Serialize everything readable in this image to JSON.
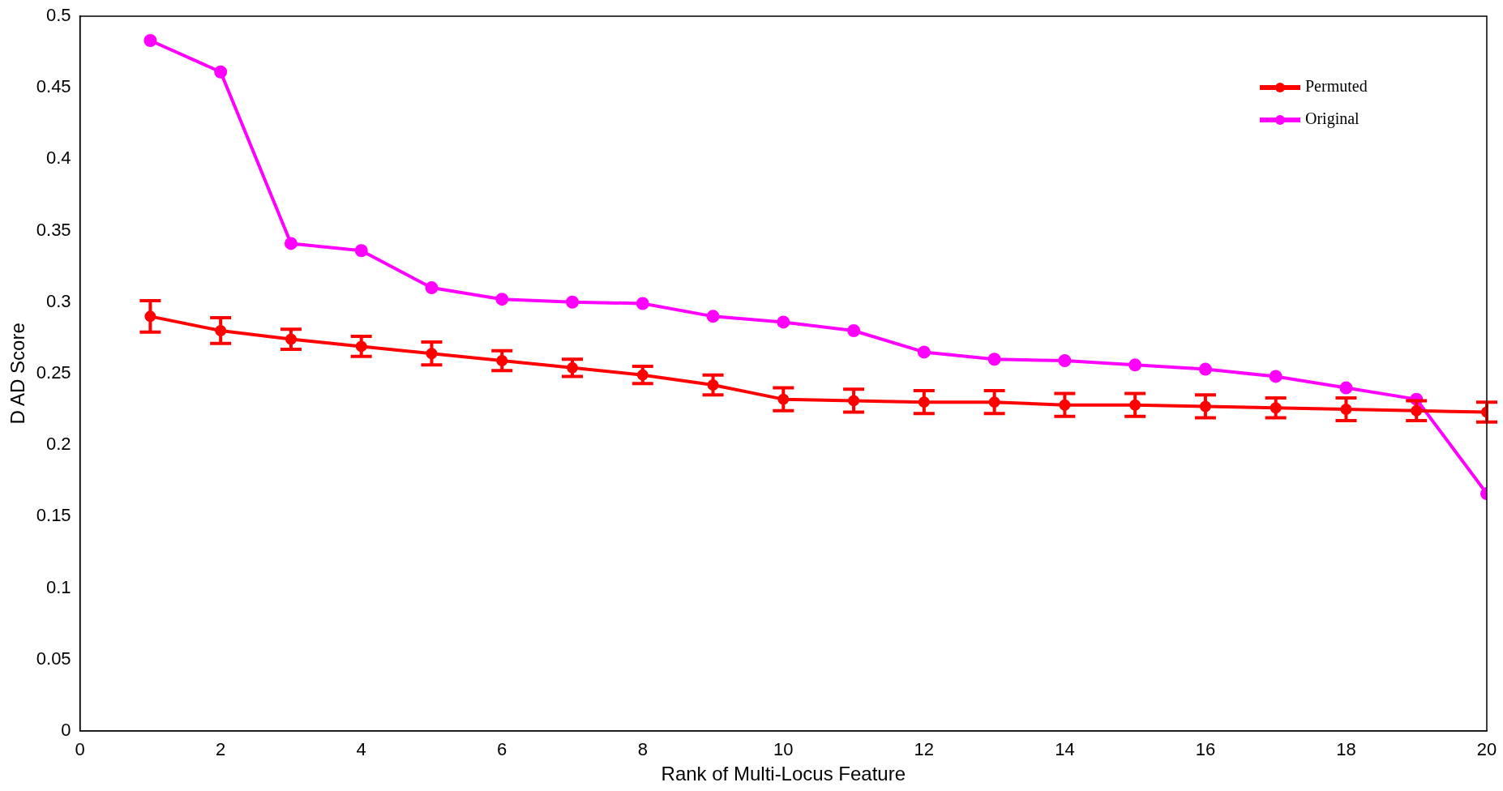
{
  "chart_data": {
    "type": "line",
    "xlabel": "Rank of Multi-Locus Feature",
    "ylabel": "D AD Score",
    "x": [
      1,
      2,
      3,
      4,
      5,
      6,
      7,
      8,
      9,
      10,
      11,
      12,
      13,
      14,
      15,
      16,
      17,
      18,
      19,
      20
    ],
    "series": [
      {
        "name": "Permuted",
        "color": "#ff0000",
        "values": [
          0.29,
          0.28,
          0.274,
          0.269,
          0.264,
          0.259,
          0.254,
          0.249,
          0.242,
          0.232,
          0.231,
          0.23,
          0.23,
          0.228,
          0.228,
          0.227,
          0.226,
          0.225,
          0.224,
          0.223
        ],
        "errors": [
          0.011,
          0.009,
          0.007,
          0.007,
          0.008,
          0.007,
          0.006,
          0.006,
          0.007,
          0.008,
          0.008,
          0.008,
          0.008,
          0.008,
          0.008,
          0.008,
          0.007,
          0.008,
          0.007,
          0.007
        ]
      },
      {
        "name": "Original",
        "color": "#ff00ff",
        "values": [
          0.483,
          0.461,
          0.341,
          0.336,
          0.31,
          0.302,
          0.3,
          0.299,
          0.29,
          0.286,
          0.28,
          0.265,
          0.26,
          0.259,
          0.256,
          0.253,
          0.248,
          0.24,
          0.232,
          0.166
        ]
      }
    ],
    "xlim": [
      0,
      20
    ],
    "xticks": [
      0,
      2,
      4,
      6,
      8,
      10,
      12,
      14,
      16,
      18,
      20
    ],
    "ylim": [
      0,
      0.5
    ],
    "yticks": [
      0,
      0.05,
      0.1,
      0.15,
      0.2,
      0.25,
      0.3,
      0.35,
      0.4,
      0.45,
      0.5
    ],
    "marker": "circle",
    "line_style": "solid",
    "legend": "top right",
    "grid": false
  }
}
